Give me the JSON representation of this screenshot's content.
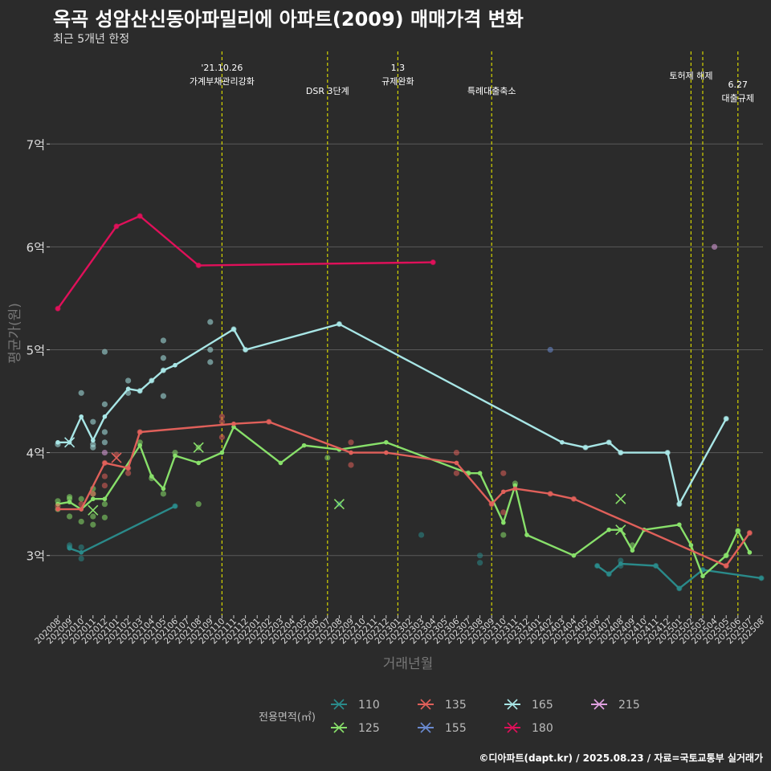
{
  "header": {
    "title": "옥곡 성암산신동아파밀리에 아파트(2009) 매매가격 변화",
    "subtitle": "최근 5개년 한정"
  },
  "caption": "©디아파트(dapt.kr) / 2025.08.23 / 자료=국토교통부 실거래가",
  "colors": {
    "background": "#2b2b2b",
    "grid": "#5a5a5a",
    "event_line": "#d4d400",
    "s110": "#2a8a8a",
    "s125": "#88e06a",
    "s135": "#e0605a",
    "s155": "#6a8ad0",
    "s165": "#a8e6e6",
    "s180": "#e0105a",
    "s215": "#e0a0e0"
  },
  "chart_data": {
    "type": "line",
    "title": "옥곡 성암산신동아파밀리에 아파트(2009) 매매가격 변화",
    "subtitle": "최근 5개년 한정",
    "xlabel": "거래년월",
    "ylabel": "평균가(원)",
    "x_categories": [
      "202008",
      "202009",
      "202010",
      "202011",
      "202012",
      "202101",
      "202102",
      "202103",
      "202104",
      "202105",
      "202106",
      "202107",
      "202108",
      "202109",
      "202110",
      "202111",
      "202112",
      "202201",
      "202202",
      "202203",
      "202204",
      "202205",
      "202206",
      "202207",
      "202208",
      "202209",
      "202210",
      "202211",
      "202212",
      "202301",
      "202302",
      "202303",
      "202304",
      "202305",
      "202306",
      "202307",
      "202308",
      "202309",
      "202310",
      "202311",
      "202312",
      "202401",
      "202402",
      "202403",
      "202404",
      "202405",
      "202406",
      "202407",
      "202408",
      "202409",
      "202410",
      "202411",
      "202412",
      "202501",
      "202502",
      "202503",
      "202504",
      "202505",
      "202506",
      "202507",
      "202508"
    ],
    "y_ticks": [
      {
        "v": 3,
        "label": "3억"
      },
      {
        "v": 4,
        "label": "4억"
      },
      {
        "v": 5,
        "label": "5억"
      },
      {
        "v": 6,
        "label": "6억"
      },
      {
        "v": 7,
        "label": "7억"
      }
    ],
    "ylim": [
      2.42,
      7.9
    ],
    "grid": true,
    "legend_title": "전용면적(㎡)",
    "legend_position": "bottom",
    "events": [
      {
        "x": "202110",
        "label": "'21.10.26\n가계부채관리강화"
      },
      {
        "x": "202207",
        "label": "DSR 3단계"
      },
      {
        "x": "202301",
        "label": "1.3\n규제완화"
      },
      {
        "x": "202309",
        "label": "특례대출축소"
      },
      {
        "x": "202502",
        "label": "토허제 해제"
      },
      {
        "x": "202503",
        "label": ""
      },
      {
        "x": "202506",
        "label": "6.27\n대출규제"
      }
    ],
    "series": [
      {
        "name": "110",
        "color": "#2a8a8a",
        "line": [
          [
            "202009",
            3.07
          ],
          [
            "202010",
            3.03
          ],
          [
            "202106",
            3.48
          ]
        ],
        "points": [
          [
            "202009",
            3.08
          ],
          [
            "202009",
            3.1
          ],
          [
            "202010",
            3.08
          ],
          [
            "202010",
            2.97
          ],
          [
            "202106",
            3.48
          ],
          [
            "202208",
            3.5
          ],
          [
            "202303",
            3.2
          ],
          [
            "202308",
            3.0
          ],
          [
            "202308",
            2.93
          ],
          [
            "202406",
            2.9
          ],
          [
            "202407",
            2.82
          ],
          [
            "202408",
            2.9
          ],
          [
            "202408",
            2.95
          ],
          [
            "202411",
            2.9
          ],
          [
            "202501",
            2.68
          ],
          [
            "202503",
            2.86
          ],
          [
            "202508",
            2.78
          ]
        ],
        "line2": [
          [
            "202406",
            2.9
          ],
          [
            "202407",
            2.82
          ],
          [
            "202408",
            2.92
          ],
          [
            "202411",
            2.9
          ],
          [
            "202501",
            2.68
          ],
          [
            "202503",
            2.86
          ],
          [
            "202508",
            2.78
          ]
        ],
        "crosses": []
      },
      {
        "name": "125",
        "color": "#88e06a",
        "line": [
          [
            "202008",
            3.5
          ],
          [
            "202009",
            3.52
          ],
          [
            "202010",
            3.45
          ],
          [
            "202011",
            3.55
          ],
          [
            "202012",
            3.55
          ],
          [
            "202103",
            4.07
          ],
          [
            "202104",
            3.77
          ],
          [
            "202105",
            3.65
          ],
          [
            "202106",
            3.97
          ],
          [
            "202108",
            3.9
          ],
          [
            "202110",
            4.0
          ],
          [
            "202111",
            4.25
          ],
          [
            "202203",
            3.9
          ],
          [
            "202205",
            4.07
          ],
          [
            "202208",
            4.03
          ],
          [
            "202212",
            4.1
          ],
          [
            "202307",
            3.8
          ],
          [
            "202308",
            3.8
          ],
          [
            "202310",
            3.32
          ],
          [
            "202311",
            3.68
          ],
          [
            "202312",
            3.2
          ],
          [
            "202404",
            3.0
          ],
          [
            "202407",
            3.25
          ],
          [
            "202408",
            3.25
          ],
          [
            "202409",
            3.05
          ],
          [
            "202410",
            3.25
          ],
          [
            "202501",
            3.3
          ],
          [
            "202502",
            3.1
          ],
          [
            "202503",
            2.8
          ],
          [
            "202505",
            3.0
          ],
          [
            "202506",
            3.24
          ],
          [
            "202507",
            3.03
          ]
        ],
        "points": [
          [
            "202008",
            3.53
          ],
          [
            "202008",
            3.45
          ],
          [
            "202009",
            3.57
          ],
          [
            "202009",
            3.55
          ],
          [
            "202009",
            3.38
          ],
          [
            "202010",
            3.33
          ],
          [
            "202010",
            3.55
          ],
          [
            "202011",
            3.6
          ],
          [
            "202011",
            3.38
          ],
          [
            "202011",
            3.3
          ],
          [
            "202011",
            3.65
          ],
          [
            "202012",
            3.37
          ],
          [
            "202012",
            3.5
          ],
          [
            "202103",
            4.1
          ],
          [
            "202104",
            3.75
          ],
          [
            "202105",
            3.6
          ],
          [
            "202106",
            4.0
          ],
          [
            "202108",
            4.05
          ],
          [
            "202108",
            3.5
          ],
          [
            "202207",
            3.95
          ],
          [
            "202307",
            3.8
          ],
          [
            "202310",
            3.2
          ],
          [
            "202311",
            3.7
          ],
          [
            "202409",
            3.1
          ],
          [
            "202505",
            3.0
          ],
          [
            "202506",
            3.24
          ]
        ],
        "crosses": [
          [
            "202011",
            3.44
          ],
          [
            "202108",
            4.05
          ],
          [
            "202208",
            3.5
          ],
          [
            "202408",
            3.55
          ],
          [
            "202408",
            3.25
          ]
        ]
      },
      {
        "name": "135",
        "color": "#e0605a",
        "line": [
          [
            "202008",
            3.45
          ],
          [
            "202010",
            3.45
          ],
          [
            "202012",
            3.9
          ],
          [
            "202102",
            3.85
          ],
          [
            "202103",
            4.2
          ],
          [
            "202111",
            4.28
          ],
          [
            "202202",
            4.3
          ],
          [
            "202209",
            4.0
          ],
          [
            "202212",
            4.0
          ],
          [
            "202306",
            3.9
          ],
          [
            "202309",
            3.5
          ],
          [
            "202310",
            3.62
          ],
          [
            "202311",
            3.65
          ],
          [
            "202402",
            3.6
          ],
          [
            "202404",
            3.55
          ],
          [
            "202505",
            2.9
          ],
          [
            "202507",
            3.22
          ]
        ],
        "points": [
          [
            "202008",
            3.48
          ],
          [
            "202010",
            3.5
          ],
          [
            "202011",
            3.6
          ],
          [
            "202012",
            3.68
          ],
          [
            "202012",
            3.77
          ],
          [
            "202012",
            3.9
          ],
          [
            "202101",
            3.98
          ],
          [
            "202102",
            3.8
          ],
          [
            "202102",
            3.85
          ],
          [
            "202103",
            4.2
          ],
          [
            "202110",
            4.15
          ],
          [
            "202110",
            4.35
          ],
          [
            "202110",
            4.3
          ],
          [
            "202202",
            4.3
          ],
          [
            "202209",
            4.1
          ],
          [
            "202209",
            3.88
          ],
          [
            "202306",
            4.0
          ],
          [
            "202306",
            3.8
          ],
          [
            "202309",
            3.5
          ],
          [
            "202310",
            3.8
          ],
          [
            "202310",
            3.42
          ],
          [
            "202402",
            3.6
          ],
          [
            "202404",
            3.55
          ],
          [
            "202505",
            2.9
          ],
          [
            "202507",
            3.22
          ]
        ],
        "crosses": [
          [
            "202101",
            3.95
          ]
        ]
      },
      {
        "name": "155",
        "color": "#6a8ad0",
        "line": [],
        "points": [
          [
            "202402",
            5.0
          ]
        ],
        "crosses": []
      },
      {
        "name": "165",
        "color": "#a8e6e6",
        "line": [
          [
            "202008",
            4.1
          ],
          [
            "202009",
            4.1
          ],
          [
            "202010",
            4.35
          ],
          [
            "202011",
            4.12
          ],
          [
            "202012",
            4.35
          ],
          [
            "202102",
            4.62
          ],
          [
            "202103",
            4.6
          ],
          [
            "202104",
            4.7
          ],
          [
            "202105",
            4.8
          ],
          [
            "202106",
            4.85
          ],
          [
            "202111",
            5.2
          ],
          [
            "202112",
            5.0
          ],
          [
            "202208",
            5.25
          ],
          [
            "202403",
            4.1
          ],
          [
            "202405",
            4.05
          ],
          [
            "202407",
            4.1
          ],
          [
            "202408",
            4.0
          ],
          [
            "202412",
            4.0
          ],
          [
            "202501",
            3.5
          ],
          [
            "202505",
            4.33
          ]
        ],
        "points": [
          [
            "202008",
            4.08
          ],
          [
            "202010",
            4.58
          ],
          [
            "202011",
            4.3
          ],
          [
            "202011",
            4.05
          ],
          [
            "202011",
            4.08
          ],
          [
            "202012",
            4.98
          ],
          [
            "202012",
            4.47
          ],
          [
            "202012",
            4.2
          ],
          [
            "202012",
            4.1
          ],
          [
            "202102",
            4.7
          ],
          [
            "202102",
            4.58
          ],
          [
            "202103",
            4.6
          ],
          [
            "202104",
            4.7
          ],
          [
            "202105",
            5.09
          ],
          [
            "202105",
            4.92
          ],
          [
            "202105",
            4.8
          ],
          [
            "202105",
            4.55
          ],
          [
            "202109",
            5.27
          ],
          [
            "202109",
            5.0
          ],
          [
            "202109",
            4.88
          ],
          [
            "202111",
            5.2
          ],
          [
            "202112",
            5.0
          ],
          [
            "202208",
            5.25
          ],
          [
            "202405",
            4.05
          ],
          [
            "202407",
            4.1
          ],
          [
            "202408",
            4.0
          ],
          [
            "202412",
            4.0
          ],
          [
            "202501",
            3.5
          ],
          [
            "202505",
            4.33
          ]
        ],
        "crosses": [
          [
            "202009",
            4.1
          ]
        ]
      },
      {
        "name": "180",
        "color": "#e0105a",
        "line": [
          [
            "202008",
            5.4
          ],
          [
            "202101",
            6.2
          ],
          [
            "202103",
            6.3
          ],
          [
            "202108",
            5.82
          ],
          [
            "202304",
            5.85
          ]
        ],
        "points": [
          [
            "202008",
            5.4
          ],
          [
            "202101",
            6.2
          ],
          [
            "202103",
            6.3
          ],
          [
            "202108",
            5.82
          ],
          [
            "202304",
            5.85
          ]
        ],
        "crosses": []
      },
      {
        "name": "215",
        "color": "#e0a0e0",
        "line": [],
        "points": [
          [
            "202012",
            4.0
          ],
          [
            "202504",
            6.0
          ]
        ],
        "crosses": []
      }
    ]
  }
}
